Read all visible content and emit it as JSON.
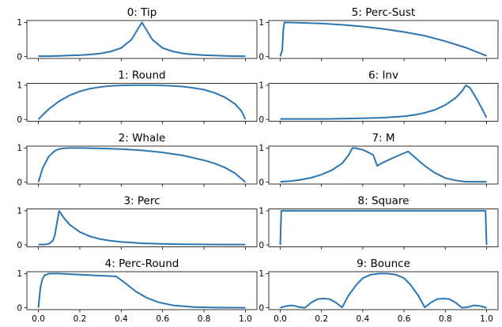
{
  "colors": {
    "line": "#2a75b3",
    "axes": "#000000"
  },
  "chart_data": [
    {
      "type": "line",
      "title": "0: Tip",
      "xlim": [
        0,
        1
      ],
      "ylim": [
        0,
        1
      ],
      "yticks": [
        "0",
        "1"
      ],
      "x": [
        0,
        0.05,
        0.1,
        0.15,
        0.2,
        0.25,
        0.3,
        0.35,
        0.4,
        0.45,
        0.5,
        0.55,
        0.6,
        0.65,
        0.7,
        0.75,
        0.8,
        0.85,
        0.9,
        0.95,
        1.0
      ],
      "y": [
        0.01,
        0.01,
        0.02,
        0.03,
        0.04,
        0.06,
        0.09,
        0.15,
        0.25,
        0.5,
        1.0,
        0.5,
        0.25,
        0.15,
        0.09,
        0.06,
        0.04,
        0.03,
        0.02,
        0.01,
        0.01
      ]
    },
    {
      "type": "line",
      "title": "1: Round",
      "xlim": [
        0,
        1
      ],
      "ylim": [
        0,
        1
      ],
      "yticks": [
        "0",
        "1"
      ],
      "x": [
        0,
        0.05,
        0.1,
        0.15,
        0.2,
        0.25,
        0.3,
        0.35,
        0.4,
        0.45,
        0.5,
        0.55,
        0.6,
        0.65,
        0.7,
        0.75,
        0.8,
        0.85,
        0.9,
        0.95,
        0.98,
        1.0
      ],
      "y": [
        0,
        0.3,
        0.53,
        0.7,
        0.82,
        0.9,
        0.95,
        0.98,
        0.995,
        1.0,
        1.0,
        1.0,
        0.995,
        0.98,
        0.96,
        0.92,
        0.87,
        0.78,
        0.65,
        0.45,
        0.25,
        0
      ]
    },
    {
      "type": "line",
      "title": "2: Whale",
      "xlim": [
        0,
        1
      ],
      "ylim": [
        0,
        1
      ],
      "yticks": [
        "0",
        "1"
      ],
      "x": [
        0,
        0.02,
        0.05,
        0.08,
        0.1,
        0.12,
        0.15,
        0.2,
        0.3,
        0.4,
        0.5,
        0.6,
        0.7,
        0.8,
        0.85,
        0.9,
        0.95,
        1.0
      ],
      "y": [
        0,
        0.4,
        0.75,
        0.92,
        0.97,
        0.99,
        1.0,
        1.0,
        0.99,
        0.97,
        0.93,
        0.87,
        0.78,
        0.64,
        0.55,
        0.43,
        0.26,
        0
      ]
    },
    {
      "type": "line",
      "title": "3: Perc",
      "xlim": [
        0,
        1
      ],
      "ylim": [
        0,
        1
      ],
      "yticks": [
        "0",
        "1"
      ],
      "x": [
        0,
        0.03,
        0.05,
        0.07,
        0.08,
        0.09,
        0.1,
        0.12,
        0.15,
        0.2,
        0.25,
        0.3,
        0.35,
        0.4,
        0.5,
        0.6,
        0.7,
        0.8,
        0.9,
        1.0
      ],
      "y": [
        0.01,
        0.01,
        0.03,
        0.12,
        0.3,
        0.65,
        1.0,
        0.82,
        0.6,
        0.38,
        0.25,
        0.17,
        0.12,
        0.09,
        0.05,
        0.03,
        0.02,
        0.015,
        0.01,
        0.01
      ]
    },
    {
      "type": "line",
      "title": "4: Perc-Round",
      "xlim": [
        0,
        1
      ],
      "ylim": [
        0,
        1
      ],
      "yticks": [
        "0",
        "1"
      ],
      "x": [
        0,
        0.01,
        0.02,
        0.03,
        0.05,
        0.07,
        0.1,
        0.2,
        0.3,
        0.375,
        0.42,
        0.47,
        0.52,
        0.58,
        0.65,
        0.75,
        0.85,
        1.0
      ],
      "y": [
        0,
        0.6,
        0.85,
        0.95,
        1.0,
        1.0,
        1.0,
        0.97,
        0.94,
        0.92,
        0.72,
        0.48,
        0.3,
        0.16,
        0.07,
        0.02,
        0.005,
        0
      ]
    },
    {
      "type": "line",
      "title": "5: Perc-Sust",
      "xlim": [
        0,
        1
      ],
      "ylim": [
        0,
        1
      ],
      "yticks": [
        "0",
        "1"
      ],
      "x": [
        0,
        0.01,
        0.015,
        0.02,
        0.1,
        0.2,
        0.3,
        0.4,
        0.5,
        0.6,
        0.7,
        0.8,
        0.9,
        1.0
      ],
      "y": [
        0,
        0.2,
        0.8,
        1.0,
        0.99,
        0.97,
        0.93,
        0.88,
        0.81,
        0.72,
        0.61,
        0.45,
        0.26,
        0.02
      ]
    },
    {
      "type": "line",
      "title": "6: Inv",
      "xlim": [
        0,
        1
      ],
      "ylim": [
        0,
        1
      ],
      "yticks": [
        "0",
        "1"
      ],
      "x": [
        0,
        0.1,
        0.2,
        0.3,
        0.4,
        0.5,
        0.6,
        0.65,
        0.7,
        0.75,
        0.8,
        0.85,
        0.88,
        0.9,
        0.92,
        0.95,
        0.97,
        1.0
      ],
      "y": [
        0.01,
        0.01,
        0.01,
        0.02,
        0.03,
        0.05,
        0.09,
        0.13,
        0.19,
        0.28,
        0.42,
        0.63,
        0.82,
        1.0,
        0.92,
        0.62,
        0.4,
        0.05
      ]
    },
    {
      "type": "line",
      "title": "7: M",
      "xlim": [
        0,
        1
      ],
      "ylim": [
        0,
        1
      ],
      "yticks": [
        "0",
        "1"
      ],
      "x": [
        0,
        0.05,
        0.1,
        0.15,
        0.2,
        0.25,
        0.3,
        0.33,
        0.35,
        0.36,
        0.4,
        0.45,
        0.47,
        0.5,
        0.55,
        0.6,
        0.62,
        0.65,
        0.7,
        0.75,
        0.8,
        0.85,
        0.9,
        1.0
      ],
      "y": [
        0.01,
        0.03,
        0.07,
        0.13,
        0.22,
        0.35,
        0.55,
        0.78,
        1.0,
        1.0,
        0.95,
        0.8,
        0.48,
        0.58,
        0.72,
        0.85,
        0.9,
        0.74,
        0.48,
        0.27,
        0.12,
        0.05,
        0.01,
        0.01
      ]
    },
    {
      "type": "line",
      "title": "8: Square",
      "xlim": [
        0,
        1
      ],
      "ylim": [
        0,
        1
      ],
      "yticks": [
        "0",
        "1"
      ],
      "x": [
        0,
        0.005,
        0.995,
        1.0
      ],
      "y": [
        0,
        1,
        1,
        0
      ]
    },
    {
      "type": "line",
      "title": "9: Bounce",
      "xlim": [
        0,
        1
      ],
      "ylim": [
        0,
        1
      ],
      "yticks": [
        "0",
        "1"
      ],
      "x": [
        0,
        0.03,
        0.06,
        0.09,
        0.12,
        0.15,
        0.18,
        0.21,
        0.24,
        0.27,
        0.3,
        0.33,
        0.37,
        0.4,
        0.44,
        0.48,
        0.5,
        0.52,
        0.56,
        0.6,
        0.63,
        0.67,
        0.7,
        0.73,
        0.76,
        0.79,
        0.82,
        0.85,
        0.88,
        0.91,
        0.94,
        0.97,
        1.0
      ],
      "y": [
        0,
        0.05,
        0.07,
        0.02,
        0,
        0.15,
        0.25,
        0.27,
        0.25,
        0.15,
        0.01,
        0.35,
        0.68,
        0.87,
        0.97,
        1.0,
        1.0,
        1.0,
        0.97,
        0.87,
        0.68,
        0.35,
        0.01,
        0.15,
        0.25,
        0.27,
        0.25,
        0.15,
        0,
        0.02,
        0.07,
        0.05,
        0
      ]
    }
  ],
  "xticks": [
    "0.0",
    "0.2",
    "0.4",
    "0.6",
    "0.8",
    "1.0"
  ]
}
